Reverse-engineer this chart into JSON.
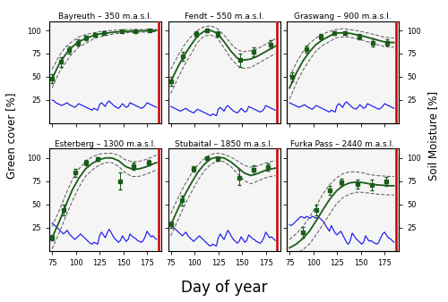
{
  "subplots": [
    {
      "title": "Bayreuth – 350 m.a.s.l.",
      "harvest_day": 187,
      "gam_x": [
        75,
        82,
        89,
        96,
        103,
        110,
        117,
        124,
        131,
        138,
        145,
        152,
        159,
        166,
        173,
        180,
        185
      ],
      "gam_y": [
        48,
        63,
        74,
        82,
        88,
        91,
        94,
        96,
        97,
        98,
        98.5,
        99,
        99.2,
        99.4,
        99.6,
        99.8,
        100
      ],
      "gam_upper": [
        58,
        72,
        82,
        88,
        93,
        95.5,
        97,
        98.5,
        99.5,
        100,
        100.5,
        101,
        101,
        101,
        101,
        101,
        101.5
      ],
      "gam_lower": [
        38,
        54,
        65,
        75,
        82,
        86,
        90,
        93,
        94.5,
        96,
        97,
        97.5,
        97.8,
        98,
        98.2,
        98.5,
        98.8
      ],
      "obs_x": [
        75,
        84,
        93,
        102,
        111,
        120,
        130,
        148,
        163,
        178
      ],
      "obs_y": [
        48,
        66,
        79,
        87,
        92,
        95,
        97.5,
        99,
        99.5,
        100
      ],
      "obs_err": [
        5,
        5,
        4,
        3,
        2.5,
        2,
        1.5,
        1,
        0.8,
        0.5
      ],
      "sm_x": [
        75,
        77,
        79,
        81,
        83,
        85,
        87,
        89,
        91,
        93,
        95,
        97,
        99,
        101,
        103,
        105,
        107,
        109,
        111,
        113,
        115,
        117,
        119,
        121,
        123,
        125,
        127,
        129,
        131,
        133,
        135,
        137,
        139,
        141,
        143,
        145,
        147,
        149,
        151,
        153,
        155,
        157,
        159,
        161,
        163,
        165,
        167,
        169,
        171,
        173,
        175,
        177,
        179,
        181,
        183,
        185
      ],
      "sm_y": [
        25,
        24,
        22,
        21,
        20,
        19,
        20,
        21,
        22,
        20,
        19,
        18,
        17,
        19,
        21,
        20,
        19,
        18,
        17,
        16,
        15,
        14,
        16,
        15,
        14,
        20,
        22,
        20,
        18,
        22,
        24,
        22,
        20,
        18,
        17,
        16,
        18,
        21,
        19,
        17,
        18,
        22,
        21,
        20,
        19,
        18,
        17,
        16,
        17,
        19,
        22,
        21,
        20,
        19,
        18,
        17
      ]
    },
    {
      "title": "Fendt – 550 m.a.s.l.",
      "harvest_day": 187,
      "gam_x": [
        75,
        82,
        89,
        96,
        103,
        110,
        117,
        124,
        131,
        138,
        145,
        152,
        159,
        166,
        173,
        180,
        185
      ],
      "gam_y": [
        45,
        60,
        73,
        84,
        94,
        99,
        100,
        97,
        88,
        78,
        70,
        68,
        69,
        72,
        76,
        80,
        83
      ],
      "gam_upper": [
        58,
        72,
        84,
        93,
        100,
        104,
        105,
        102,
        95,
        86,
        79,
        77,
        78,
        80,
        84,
        88,
        91
      ],
      "gam_lower": [
        32,
        48,
        62,
        74,
        87,
        94,
        95,
        92,
        81,
        70,
        62,
        59,
        60,
        64,
        68,
        72,
        75
      ],
      "obs_x": [
        75,
        88,
        102,
        113,
        124,
        148,
        162,
        180
      ],
      "obs_y": [
        45,
        72,
        96,
        100,
        96,
        68,
        77,
        85
      ],
      "obs_err": [
        5,
        5,
        3,
        2,
        3,
        7,
        5,
        4
      ],
      "sm_x": [
        75,
        77,
        79,
        81,
        83,
        85,
        87,
        89,
        91,
        93,
        95,
        97,
        99,
        101,
        103,
        105,
        107,
        109,
        111,
        113,
        115,
        117,
        119,
        121,
        123,
        125,
        127,
        129,
        131,
        133,
        135,
        137,
        139,
        141,
        143,
        145,
        147,
        149,
        151,
        153,
        155,
        157,
        159,
        161,
        163,
        165,
        167,
        169,
        171,
        173,
        175,
        177,
        179,
        181,
        183,
        185
      ],
      "sm_y": [
        18,
        17,
        16,
        15,
        14,
        13,
        14,
        15,
        16,
        14,
        13,
        12,
        11,
        13,
        15,
        14,
        13,
        12,
        11,
        10,
        9,
        8,
        10,
        9,
        8,
        15,
        17,
        15,
        13,
        17,
        19,
        17,
        15,
        13,
        12,
        11,
        13,
        16,
        14,
        12,
        13,
        18,
        17,
        16,
        15,
        14,
        13,
        12,
        13,
        15,
        19,
        18,
        17,
        16,
        15,
        14
      ]
    },
    {
      "title": "Graswang – 900 m.a.s.l.",
      "harvest_day": 187,
      "gam_x": [
        75,
        82,
        89,
        96,
        103,
        110,
        117,
        124,
        131,
        138,
        145,
        152,
        159,
        166,
        173,
        180,
        185
      ],
      "gam_y": [
        38,
        54,
        67,
        77,
        85,
        90,
        94,
        97,
        97.5,
        97,
        95.5,
        94,
        92,
        90,
        88,
        87,
        87
      ],
      "gam_upper": [
        50,
        65,
        77,
        86,
        92,
        96,
        99,
        101,
        102,
        101,
        100,
        98.5,
        97,
        95,
        93,
        92,
        92
      ],
      "gam_lower": [
        26,
        43,
        57,
        68,
        78,
        84,
        88,
        92,
        93,
        93,
        91,
        89.5,
        87,
        85,
        83,
        82,
        82
      ],
      "obs_x": [
        78,
        93,
        108,
        122,
        133,
        148,
        163,
        178
      ],
      "obs_y": [
        50,
        80,
        93,
        97.5,
        97,
        93,
        87,
        87
      ],
      "obs_err": [
        5,
        4,
        3,
        2,
        2,
        3,
        4,
        3
      ],
      "sm_x": [
        75,
        77,
        79,
        81,
        83,
        85,
        87,
        89,
        91,
        93,
        95,
        97,
        99,
        101,
        103,
        105,
        107,
        109,
        111,
        113,
        115,
        117,
        119,
        121,
        123,
        125,
        127,
        129,
        131,
        133,
        135,
        137,
        139,
        141,
        143,
        145,
        147,
        149,
        151,
        153,
        155,
        157,
        159,
        161,
        163,
        165,
        167,
        169,
        171,
        173,
        175,
        177,
        179,
        181,
        183,
        185
      ],
      "sm_y": [
        22,
        21,
        20,
        19,
        18,
        17,
        18,
        19,
        20,
        18,
        17,
        16,
        15,
        17,
        19,
        18,
        17,
        16,
        15,
        14,
        13,
        12,
        14,
        13,
        12,
        19,
        21,
        19,
        17,
        21,
        23,
        21,
        19,
        17,
        16,
        15,
        17,
        20,
        18,
        16,
        17,
        21,
        20,
        19,
        18,
        17,
        16,
        15,
        16,
        18,
        21,
        20,
        19,
        18,
        17,
        16
      ]
    },
    {
      "title": "Esterberg – 1300 m.a.s.l.",
      "harvest_day": 187,
      "gam_x": [
        75,
        82,
        89,
        96,
        103,
        110,
        117,
        124,
        131,
        138,
        145,
        152,
        159,
        166,
        173,
        180,
        185
      ],
      "gam_y": [
        14,
        30,
        48,
        65,
        78,
        88,
        94,
        98,
        100,
        100,
        97,
        91,
        88,
        88,
        90,
        93,
        95
      ],
      "gam_upper": [
        26,
        42,
        60,
        76,
        88,
        96,
        101,
        104,
        105,
        105,
        103,
        98,
        96,
        96,
        98,
        101,
        103
      ],
      "gam_lower": [
        2,
        18,
        36,
        53,
        68,
        80,
        87,
        92,
        95,
        95,
        91,
        84,
        80,
        80,
        82,
        85,
        87
      ],
      "obs_x": [
        75,
        87,
        99,
        111,
        123,
        147,
        161,
        177
      ],
      "obs_y": [
        14,
        44,
        84,
        95,
        99,
        75,
        91,
        95
      ],
      "obs_err": [
        3,
        6,
        4,
        3,
        2,
        9,
        4,
        3
      ],
      "sm_x": [
        75,
        77,
        79,
        81,
        83,
        85,
        87,
        89,
        91,
        93,
        95,
        97,
        99,
        101,
        103,
        105,
        107,
        109,
        111,
        113,
        115,
        117,
        119,
        121,
        123,
        125,
        127,
        129,
        131,
        133,
        135,
        137,
        139,
        141,
        143,
        145,
        147,
        149,
        151,
        153,
        155,
        157,
        159,
        161,
        163,
        165,
        167,
        169,
        171,
        173,
        175,
        177,
        179,
        181,
        183,
        185
      ],
      "sm_y": [
        30,
        28,
        26,
        24,
        22,
        20,
        18,
        20,
        22,
        18,
        16,
        14,
        12,
        14,
        16,
        18,
        16,
        14,
        12,
        10,
        8,
        7,
        9,
        8,
        7,
        16,
        20,
        17,
        14,
        19,
        23,
        20,
        16,
        13,
        11,
        9,
        11,
        16,
        13,
        10,
        12,
        18,
        16,
        14,
        13,
        11,
        10,
        9,
        11,
        15,
        21,
        18,
        15,
        16,
        14,
        12
      ]
    },
    {
      "title": "Stubaital – 1850 m.a.s.l.",
      "harvest_day": 187,
      "gam_x": [
        75,
        82,
        89,
        96,
        103,
        110,
        117,
        124,
        131,
        138,
        145,
        152,
        159,
        166,
        173,
        180,
        185
      ],
      "gam_y": [
        28,
        44,
        59,
        72,
        84,
        93,
        99,
        101,
        100,
        96,
        90,
        84,
        81,
        83,
        86,
        88,
        89
      ],
      "gam_upper": [
        40,
        56,
        70,
        82,
        92,
        99,
        104,
        105,
        104,
        101,
        97,
        92,
        90,
        91,
        94,
        96,
        97
      ],
      "gam_lower": [
        16,
        32,
        48,
        62,
        75,
        86,
        93,
        97,
        96,
        91,
        83,
        76,
        72,
        75,
        78,
        80,
        81
      ],
      "obs_x": [
        75,
        87,
        99,
        113,
        124,
        147,
        162,
        177
      ],
      "obs_y": [
        28,
        54,
        88,
        100,
        99,
        79,
        87,
        90
      ],
      "obs_err": [
        3,
        5,
        3,
        2,
        2,
        8,
        5,
        4
      ],
      "sm_x": [
        75,
        77,
        79,
        81,
        83,
        85,
        87,
        89,
        91,
        93,
        95,
        97,
        99,
        101,
        103,
        105,
        107,
        109,
        111,
        113,
        115,
        117,
        119,
        121,
        123,
        125,
        127,
        129,
        131,
        133,
        135,
        137,
        139,
        141,
        143,
        145,
        147,
        149,
        151,
        153,
        155,
        157,
        159,
        161,
        163,
        165,
        167,
        169,
        171,
        173,
        175,
        177,
        179,
        181,
        183,
        185
      ],
      "sm_y": [
        28,
        26,
        24,
        22,
        20,
        18,
        16,
        18,
        20,
        16,
        14,
        12,
        10,
        12,
        14,
        16,
        14,
        12,
        10,
        8,
        6,
        5,
        7,
        6,
        5,
        14,
        18,
        15,
        12,
        17,
        22,
        19,
        15,
        12,
        10,
        8,
        10,
        15,
        12,
        9,
        11,
        17,
        15,
        13,
        12,
        10,
        9,
        8,
        10,
        14,
        20,
        17,
        14,
        15,
        13,
        11
      ]
    },
    {
      "title": "Furka Pass – 2440 m.a.s.l.",
      "harvest_day": 187,
      "gam_x": [
        75,
        82,
        89,
        96,
        103,
        110,
        117,
        124,
        131,
        138,
        145,
        152,
        159,
        166,
        173,
        180,
        185
      ],
      "gam_y": [
        3,
        7,
        13,
        21,
        32,
        44,
        55,
        64,
        70,
        73,
        74,
        73.5,
        72,
        71,
        70.5,
        70,
        70
      ],
      "gam_upper": [
        12,
        18,
        26,
        36,
        48,
        61,
        71,
        78,
        83,
        85,
        85,
        84,
        82,
        81,
        80.5,
        80,
        80
      ],
      "gam_lower": [
        -5,
        -3,
        1,
        7,
        17,
        28,
        39,
        50,
        57,
        61,
        63,
        63,
        62,
        61,
        60.5,
        60,
        60
      ],
      "obs_x": [
        89,
        103,
        117,
        130,
        147,
        162,
        177
      ],
      "obs_y": [
        20,
        44,
        65,
        74,
        72,
        71,
        75
      ],
      "obs_err": [
        6,
        6,
        5,
        4,
        5,
        6,
        5
      ],
      "sm_x": [
        75,
        77,
        79,
        81,
        83,
        85,
        87,
        89,
        91,
        93,
        95,
        97,
        99,
        101,
        103,
        105,
        107,
        109,
        111,
        113,
        115,
        117,
        119,
        121,
        123,
        125,
        127,
        129,
        131,
        133,
        135,
        137,
        139,
        141,
        143,
        145,
        147,
        149,
        151,
        153,
        155,
        157,
        159,
        161,
        163,
        165,
        167,
        169,
        171,
        173,
        175,
        177,
        179,
        181,
        183,
        185
      ],
      "sm_y": [
        28,
        27,
        29,
        31,
        33,
        35,
        37,
        36,
        35,
        37,
        36,
        35,
        37,
        36,
        35,
        36,
        35,
        33,
        31,
        27,
        24,
        21,
        27,
        23,
        19,
        17,
        19,
        21,
        17,
        13,
        9,
        7,
        11,
        19,
        16,
        13,
        11,
        9,
        7,
        9,
        16,
        13,
        10,
        11,
        9,
        8,
        7,
        9,
        14,
        18,
        20,
        17,
        14,
        13,
        11,
        9
      ]
    }
  ],
  "xlim": [
    72,
    190
  ],
  "ylim": [
    0,
    110
  ],
  "yticks": [
    25,
    50,
    75,
    100
  ],
  "xticks": [
    75,
    100,
    125,
    150,
    175
  ],
  "xlabel": "Day of year",
  "ylabel_left": "Green cover [%]",
  "ylabel_right": "Soil Moisture [%]",
  "gam_color": "#1a5c1a",
  "gam_ci_color": "#555555",
  "obs_color": "#1a5c1a",
  "sm_color": "#1a1aee",
  "harvest_color": "#cc0000",
  "harvest_linewidth": 1.8,
  "title_fontsize": 6.5,
  "tick_fontsize": 6.0,
  "label_fontsize": 8.5,
  "xlabel_fontsize": 12
}
